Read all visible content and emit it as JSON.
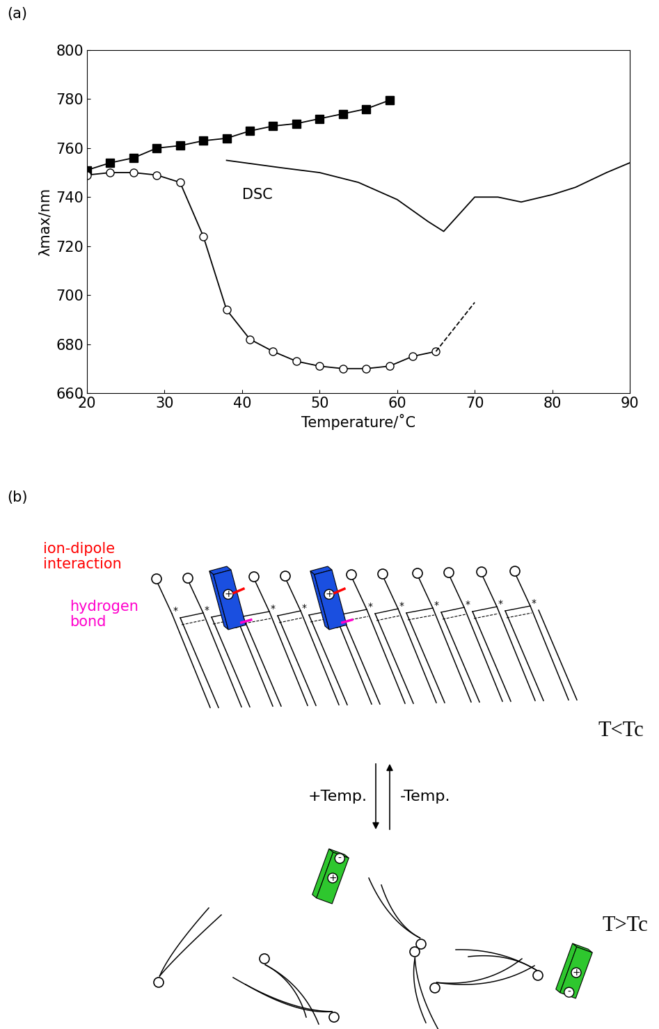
{
  "panel_labels": [
    "(a)",
    "(b)"
  ],
  "chart_data": {
    "type": "line",
    "x_label": "Temperature/˚C",
    "y_label": "λmax/nm",
    "xlim": [
      20,
      90
    ],
    "xticks": [
      20,
      30,
      40,
      50,
      60,
      70,
      80,
      90
    ],
    "ylim": [
      660,
      800
    ],
    "yticks": [
      660,
      680,
      700,
      720,
      740,
      760,
      780,
      800
    ],
    "grid": false,
    "annotations": [
      {
        "text": "DSC",
        "x": 40,
        "y": 741
      }
    ],
    "series": [
      {
        "color": "#000000",
        "marker": "filled_square",
        "line_style": "solid",
        "x": [
          20,
          23,
          26,
          29,
          32,
          35,
          38,
          41,
          44,
          47,
          50,
          53,
          56,
          59
        ],
        "values": [
          751,
          754,
          756,
          760,
          761,
          763,
          764,
          767,
          769,
          770,
          772,
          774,
          776,
          779.5
        ]
      },
      {
        "color": "#000000",
        "marker": "open_circle",
        "line_style": "solid",
        "x": [
          20,
          23,
          26,
          29,
          32,
          35,
          38,
          41,
          44,
          47,
          50,
          53,
          56,
          59,
          62,
          65
        ],
        "values": [
          749,
          750,
          750,
          749,
          746,
          724,
          694,
          682,
          677,
          673,
          671,
          670,
          670,
          671,
          675,
          677
        ]
      },
      {
        "color": "#000000",
        "marker": "none",
        "line_style": "dashed",
        "x": [
          65,
          70
        ],
        "values": [
          677,
          697
        ]
      },
      {
        "color": "#000000",
        "marker": "none",
        "line_style": "solid",
        "x": [
          38,
          45,
          50,
          55,
          60,
          64,
          66,
          68,
          70,
          73,
          76,
          80,
          83,
          87,
          90
        ],
        "values": [
          755,
          752,
          750,
          746,
          739,
          730,
          726,
          733,
          740,
          740,
          738,
          741,
          744,
          750,
          754
        ]
      }
    ]
  },
  "diagram": {
    "ion_dipole_label": {
      "text": "ion-dipole\ninteraction",
      "color": "#ff0000"
    },
    "hydrogen_bond_label": {
      "text": "hydrogen\nbond",
      "color": "#ff00cc"
    },
    "state_low": "T<Tc",
    "state_high": "T>Tc",
    "heating": "+Temp.",
    "cooling": "-Temp.",
    "asterisk": "*",
    "plus": "+",
    "minus": "-",
    "dye_low_color": "#1a4fe0",
    "dye_high_color": "#2ec72e"
  }
}
